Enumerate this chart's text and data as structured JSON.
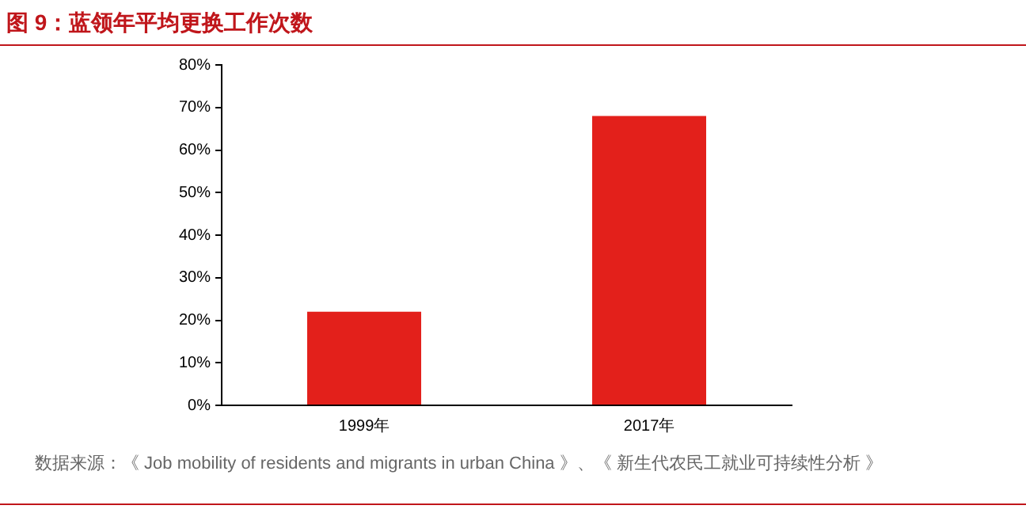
{
  "chart_data": {
    "type": "bar",
    "title": "图 9：蓝领年平均更换工作次数",
    "categories": [
      "1999年",
      "2017年"
    ],
    "values": [
      22,
      68
    ],
    "color": "#e3201b",
    "ylim": [
      0,
      80
    ],
    "yticks": [
      {
        "value": 0,
        "label": "0%"
      },
      {
        "value": 10,
        "label": "10%"
      },
      {
        "value": 20,
        "label": "20%"
      },
      {
        "value": 30,
        "label": "30%"
      },
      {
        "value": 40,
        "label": "40%"
      },
      {
        "value": 50,
        "label": "50%"
      },
      {
        "value": 60,
        "label": "60%"
      },
      {
        "value": 70,
        "label": "70%"
      },
      {
        "value": 80,
        "label": "80%"
      }
    ],
    "grid": false,
    "legend": false,
    "annotations": [
      "数据来源：《 Job mobility of residents and migrants in urban China 》、《 新生代农民工就业可持续性分析 》"
    ]
  }
}
